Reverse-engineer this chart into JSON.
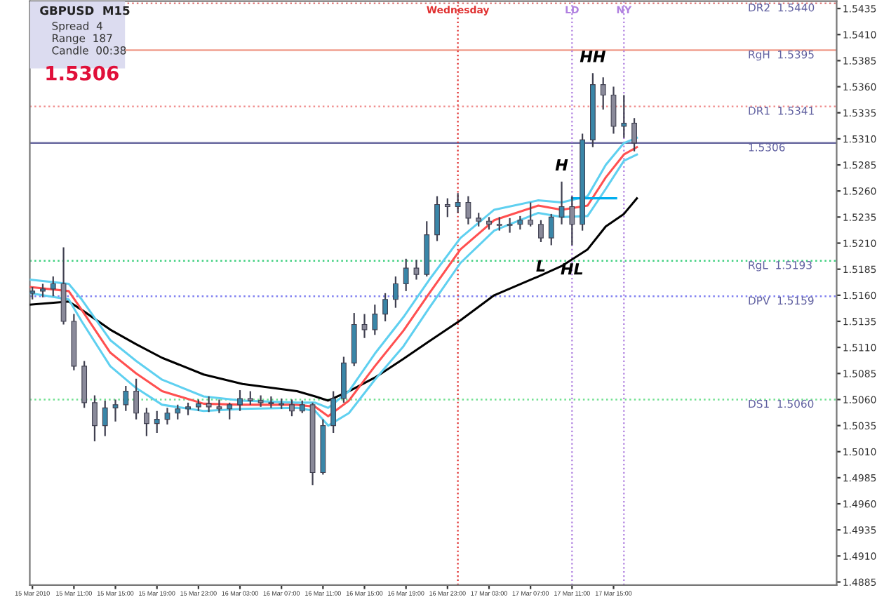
{
  "chart_data": {
    "type": "candlestick",
    "title": "GBPUSD  M15",
    "annotations": [
      "Spread  4",
      "Range  187",
      "Candle  00:38",
      "1.5306",
      {
        "text": "HH",
        "x": "2010-03-17T13:00",
        "y": 1.5373
      },
      {
        "text": "H",
        "x": "2010-03-17T10:00",
        "y": 1.5269
      },
      {
        "text": "L",
        "x": "2010-03-17T08:00",
        "y": 1.5211
      },
      {
        "text": "HL",
        "x": "2010-03-17T11:00",
        "y": 1.5208
      }
    ],
    "x": [
      "2010-03-15T07:00",
      "2010-03-15T08:00",
      "2010-03-15T09:00",
      "2010-03-15T10:00",
      "2010-03-15T11:00",
      "2010-03-15T12:00",
      "2010-03-15T13:00",
      "2010-03-15T14:00",
      "2010-03-15T15:00",
      "2010-03-15T16:00",
      "2010-03-15T17:00",
      "2010-03-15T18:00",
      "2010-03-15T19:00",
      "2010-03-15T20:00",
      "2010-03-15T21:00",
      "2010-03-15T22:00",
      "2010-03-15T23:00",
      "2010-03-16T00:00",
      "2010-03-16T01:00",
      "2010-03-16T02:00",
      "2010-03-16T03:00",
      "2010-03-16T04:00",
      "2010-03-16T05:00",
      "2010-03-16T06:00",
      "2010-03-16T07:00",
      "2010-03-16T08:00",
      "2010-03-16T09:00",
      "2010-03-16T10:00",
      "2010-03-16T11:00",
      "2010-03-16T12:00",
      "2010-03-16T13:00",
      "2010-03-16T14:00",
      "2010-03-16T15:00",
      "2010-03-16T16:00",
      "2010-03-16T17:00",
      "2010-03-16T18:00",
      "2010-03-16T19:00",
      "2010-03-16T20:00",
      "2010-03-16T21:00",
      "2010-03-16T22:00",
      "2010-03-16T23:00",
      "2010-03-17T00:00",
      "2010-03-17T01:00",
      "2010-03-17T02:00",
      "2010-03-17T03:00",
      "2010-03-17T04:00",
      "2010-03-17T05:00",
      "2010-03-17T06:00",
      "2010-03-17T07:00",
      "2010-03-17T08:00",
      "2010-03-17T09:00",
      "2010-03-17T10:00",
      "2010-03-17T11:00",
      "2010-03-17T12:00",
      "2010-03-17T13:00",
      "2010-03-17T14:00",
      "2010-03-17T15:00",
      "2010-03-17T16:00",
      "2010-03-17T17:00"
    ],
    "ohlc": [
      [
        1.5162,
        1.5168,
        1.5156,
        1.5164
      ],
      [
        1.5164,
        1.5171,
        1.5158,
        1.5166
      ],
      [
        1.5166,
        1.5178,
        1.5159,
        1.5171
      ],
      [
        1.5171,
        1.5206,
        1.5132,
        1.5135
      ],
      [
        1.5135,
        1.5142,
        1.5088,
        1.5092
      ],
      [
        1.5092,
        1.5097,
        1.5052,
        1.5057
      ],
      [
        1.5057,
        1.5064,
        1.502,
        1.5035
      ],
      [
        1.5035,
        1.5059,
        1.5025,
        1.5052
      ],
      [
        1.5052,
        1.506,
        1.5039,
        1.5055
      ],
      [
        1.5055,
        1.5073,
        1.5049,
        1.5068
      ],
      [
        1.5068,
        1.508,
        1.5041,
        1.5047
      ],
      [
        1.5047,
        1.5052,
        1.5025,
        1.5037
      ],
      [
        1.5037,
        1.5049,
        1.5028,
        1.5041
      ],
      [
        1.5041,
        1.5052,
        1.5036,
        1.5047
      ],
      [
        1.5047,
        1.5055,
        1.5041,
        1.5051
      ],
      [
        1.5051,
        1.5057,
        1.5045,
        1.5053
      ],
      [
        1.5053,
        1.506,
        1.5049,
        1.5056
      ],
      [
        1.5056,
        1.5063,
        1.5048,
        1.5053
      ],
      [
        1.5053,
        1.506,
        1.5047,
        1.5051
      ],
      [
        1.5051,
        1.5057,
        1.5041,
        1.5055
      ],
      [
        1.5055,
        1.5069,
        1.5049,
        1.5061
      ],
      [
        1.5061,
        1.5068,
        1.5055,
        1.5059
      ],
      [
        1.5059,
        1.5064,
        1.5053,
        1.5057
      ],
      [
        1.5057,
        1.5063,
        1.5052,
        1.5056
      ],
      [
        1.5056,
        1.5061,
        1.5051,
        1.5055
      ],
      [
        1.5055,
        1.506,
        1.5044,
        1.5049
      ],
      [
        1.5049,
        1.5059,
        1.5047,
        1.5055
      ],
      [
        1.5055,
        1.5057,
        1.4978,
        1.499
      ],
      [
        1.499,
        1.5041,
        1.4988,
        1.5035
      ],
      [
        1.5035,
        1.5068,
        1.5028,
        1.5061
      ],
      [
        1.5061,
        1.5101,
        1.5057,
        1.5095
      ],
      [
        1.5095,
        1.5143,
        1.5092,
        1.5132
      ],
      [
        1.5132,
        1.5142,
        1.5119,
        1.5127
      ],
      [
        1.5127,
        1.5151,
        1.5122,
        1.5142
      ],
      [
        1.5142,
        1.5162,
        1.5135,
        1.5156
      ],
      [
        1.5156,
        1.5178,
        1.5148,
        1.5171
      ],
      [
        1.5171,
        1.5195,
        1.5164,
        1.5186
      ],
      [
        1.5186,
        1.5194,
        1.5175,
        1.518
      ],
      [
        1.518,
        1.5231,
        1.5178,
        1.5218
      ],
      [
        1.5218,
        1.5255,
        1.5212,
        1.5247
      ],
      [
        1.5247,
        1.5253,
        1.5235,
        1.5245
      ],
      [
        1.5245,
        1.5258,
        1.5239,
        1.5249
      ],
      [
        1.5249,
        1.5255,
        1.5228,
        1.5234
      ],
      [
        1.5234,
        1.5239,
        1.5226,
        1.5231
      ],
      [
        1.5231,
        1.5235,
        1.5223,
        1.5228
      ],
      [
        1.5228,
        1.5235,
        1.5222,
        1.5227
      ],
      [
        1.5227,
        1.5234,
        1.522,
        1.5228
      ],
      [
        1.5228,
        1.5236,
        1.5223,
        1.5232
      ],
      [
        1.5232,
        1.5249,
        1.5226,
        1.5228
      ],
      [
        1.5228,
        1.5232,
        1.5211,
        1.5215
      ],
      [
        1.5215,
        1.5238,
        1.5208,
        1.5235
      ],
      [
        1.5235,
        1.5269,
        1.5228,
        1.5245
      ],
      [
        1.5245,
        1.5255,
        1.5208,
        1.5228
      ],
      [
        1.5228,
        1.5315,
        1.5222,
        1.5309
      ],
      [
        1.5309,
        1.5373,
        1.5302,
        1.5362
      ],
      [
        1.5362,
        1.5369,
        1.5338,
        1.5352
      ],
      [
        1.5352,
        1.536,
        1.5315,
        1.5322
      ],
      [
        1.5322,
        1.5352,
        1.5311,
        1.5325
      ],
      [
        1.5325,
        1.533,
        1.5298,
        1.5306
      ]
    ],
    "series": [
      {
        "type": "line",
        "color": "#000000",
        "x": [
          "2010-03-15T06:45",
          "2010-03-15T10:30",
          "2010-03-15T11:45",
          "2010-03-15T14:30",
          "2010-03-15T17:00",
          "2010-03-15T19:30",
          "2010-03-15T23:30",
          "2010-03-16T03:15",
          "2010-03-16T08:30",
          "2010-03-16T10:15",
          "2010-03-16T11:30",
          "2010-03-16T13:30",
          "2010-03-16T16:00",
          "2010-03-16T18:45",
          "2010-03-16T21:15",
          "2010-03-17T00:15",
          "2010-03-17T03:30",
          "2010-03-17T07:45",
          "2010-03-17T10:00",
          "2010-03-17T12:30",
          "2010-03-17T14:15",
          "2010-03-17T16:00",
          "2010-03-17T17:15"
        ],
        "values": [
          1.5151,
          1.5154,
          1.5146,
          1.5127,
          1.5113,
          1.51,
          1.5084,
          1.5075,
          1.5068,
          1.5063,
          1.5059,
          1.5068,
          1.5081,
          1.5099,
          1.5116,
          1.5136,
          1.516,
          1.5178,
          1.5188,
          1.5204,
          1.5226,
          1.5238,
          1.5253
        ]
      },
      {
        "type": "line",
        "color": "#ff5050",
        "x": [
          "2010-03-15T06:45",
          "2010-03-15T10:30",
          "2010-03-15T11:45",
          "2010-03-15T14:30",
          "2010-03-15T17:00",
          "2010-03-15T19:30",
          "2010-03-15T23:30",
          "2010-03-16T03:15",
          "2010-03-16T08:30",
          "2010-03-16T10:15",
          "2010-03-16T11:30",
          "2010-03-16T13:30",
          "2010-03-16T16:00",
          "2010-03-16T18:45",
          "2010-03-16T21:15",
          "2010-03-17T00:15",
          "2010-03-17T03:30",
          "2010-03-17T07:45",
          "2010-03-17T10:00",
          "2010-03-17T12:30",
          "2010-03-17T14:15",
          "2010-03-17T16:00",
          "2010-03-17T17:15"
        ],
        "values": [
          1.5168,
          1.5164,
          1.5146,
          1.5105,
          1.5085,
          1.5068,
          1.5056,
          1.5055,
          1.5055,
          1.5053,
          1.5044,
          1.5059,
          1.5092,
          1.5126,
          1.5162,
          1.5204,
          1.5232,
          1.5246,
          1.5242,
          1.5246,
          1.5273,
          1.5295,
          1.5302
        ]
      },
      {
        "type": "line",
        "color": "#5fd0f0",
        "x": [
          "2010-03-15T06:45",
          "2010-03-15T10:30",
          "2010-03-15T11:45",
          "2010-03-15T14:30",
          "2010-03-15T17:00",
          "2010-03-15T19:30",
          "2010-03-15T23:30",
          "2010-03-16T03:15",
          "2010-03-16T08:30",
          "2010-03-16T10:15",
          "2010-03-16T11:30",
          "2010-03-16T13:30",
          "2010-03-16T16:00",
          "2010-03-16T18:45",
          "2010-03-16T21:15",
          "2010-03-17T00:15",
          "2010-03-17T03:30",
          "2010-03-17T07:45",
          "2010-03-17T10:00",
          "2010-03-17T12:30",
          "2010-03-17T14:15",
          "2010-03-17T16:00",
          "2010-03-17T17:15"
        ],
        "values": [
          1.5175,
          1.5171,
          1.5156,
          1.5117,
          1.5097,
          1.5079,
          1.5063,
          1.5059,
          1.5057,
          1.5057,
          1.5052,
          1.5068,
          1.5104,
          1.5139,
          1.5175,
          1.5215,
          1.5242,
          1.5251,
          1.5249,
          1.5255,
          1.5285,
          1.5306,
          1.5311
        ]
      },
      {
        "type": "line",
        "color": "#5fd0f0",
        "x": [
          "2010-03-15T06:45",
          "2010-03-15T10:30",
          "2010-03-15T11:45",
          "2010-03-15T14:30",
          "2010-03-15T17:00",
          "2010-03-15T19:30",
          "2010-03-15T23:30",
          "2010-03-16T03:15",
          "2010-03-16T08:30",
          "2010-03-16T10:15",
          "2010-03-16T11:30",
          "2010-03-16T13:30",
          "2010-03-16T16:00",
          "2010-03-16T18:45",
          "2010-03-16T21:15",
          "2010-03-17T00:15",
          "2010-03-17T03:30",
          "2010-03-17T07:45",
          "2010-03-17T10:00",
          "2010-03-17T12:30",
          "2010-03-17T14:15",
          "2010-03-17T16:00",
          "2010-03-17T17:15"
        ],
        "values": [
          1.5162,
          1.5156,
          1.5135,
          1.5092,
          1.5071,
          1.5055,
          1.5049,
          1.5051,
          1.5052,
          1.5049,
          1.5035,
          1.5047,
          1.5079,
          1.5111,
          1.5148,
          1.5191,
          1.5222,
          1.5239,
          1.5235,
          1.5236,
          1.5262,
          1.5289,
          1.5295
        ]
      },
      {
        "type": "line",
        "color": "#00aeef",
        "x": [
          "2010-03-17T11:00",
          "2010-03-17T15:15"
        ],
        "values": [
          1.5253,
          1.5253
        ]
      }
    ],
    "ref_lines": [
      {
        "axis": "y",
        "value": 1.544,
        "label": "DR2  1.5440",
        "color": "#e08080",
        "line_style": "dotted"
      },
      {
        "axis": "y",
        "value": 1.5395,
        "label": "RgH  1.5395",
        "color": "#f0a090",
        "line_style": "solid"
      },
      {
        "axis": "y",
        "value": 1.5341,
        "label": "DR1  1.5341",
        "color": "#f09090",
        "line_style": "dotted"
      },
      {
        "axis": "y",
        "value": 1.5306,
        "label": "1.5306",
        "color": "#6a6aa0",
        "line_style": "solid"
      },
      {
        "axis": "y",
        "value": 1.5193,
        "label": "RgL  1.5193",
        "color": "#40d080",
        "line_style": "dotted"
      },
      {
        "axis": "y",
        "value": 1.5159,
        "label": "DPV  1.5159",
        "color": "#8080f0",
        "line_style": "dotted"
      },
      {
        "axis": "y",
        "value": 1.506,
        "label": "DS1  1.5060",
        "color": "#70e090",
        "line_style": "dotted"
      },
      {
        "axis": "x",
        "value": "2010-03-17T00:00",
        "label": "Wednesday",
        "color": "#e03030",
        "line_style": "dotted"
      },
      {
        "axis": "x",
        "value": "2010-03-17T11:00",
        "label": "LD",
        "color": "#b080e0",
        "line_style": "dotted"
      },
      {
        "axis": "x",
        "value": "2010-03-17T16:00",
        "label": "NY",
        "color": "#b080e0",
        "line_style": "dotted"
      }
    ],
    "xlim": [
      "2010-03-15T06:45",
      "2010-03-18T12:30"
    ],
    "xticks": [
      {
        "value": "2010-03-15T07:00",
        "label": "15 Mar 2010"
      },
      {
        "value": "2010-03-15T11:00",
        "label": "15 Mar 11:00"
      },
      {
        "value": "2010-03-15T15:00",
        "label": "15 Mar 15:00"
      },
      {
        "value": "2010-03-15T19:00",
        "label": "15 Mar 19:00"
      },
      {
        "value": "2010-03-15T23:00",
        "label": "15 Mar 23:00"
      },
      {
        "value": "2010-03-16T03:00",
        "label": "16 Mar 03:00"
      },
      {
        "value": "2010-03-16T07:00",
        "label": "16 Mar 07:00"
      },
      {
        "value": "2010-03-16T11:00",
        "label": "16 Mar 11:00"
      },
      {
        "value": "2010-03-16T15:00",
        "label": "16 Mar 15:00"
      },
      {
        "value": "2010-03-16T19:00",
        "label": "16 Mar 19:00"
      },
      {
        "value": "2010-03-16T23:00",
        "label": "16 Mar 23:00"
      },
      {
        "value": "2010-03-17T03:00",
        "label": "17 Mar 03:00"
      },
      {
        "value": "2010-03-17T07:00",
        "label": "17 Mar 07:00"
      },
      {
        "value": "2010-03-17T11:00",
        "label": "17 Mar 11:00"
      },
      {
        "value": "2010-03-17T15:00",
        "label": "17 Mar 15:00"
      }
    ],
    "ylim": [
      1.4882,
      1.5442
    ],
    "yticks": [
      1.4885,
      {
        "value": 1.491,
        "label": "1.4910"
      },
      1.4935,
      {
        "value": 1.496,
        "label": "1.4960"
      },
      1.4985,
      {
        "value": 1.501,
        "label": "1.5010"
      },
      1.5035,
      {
        "value": 1.506,
        "label": "1.5060"
      },
      1.5085,
      {
        "value": 1.511,
        "label": "1.5110"
      },
      1.5135,
      {
        "value": 1.516,
        "label": "1.5160"
      },
      1.5185,
      {
        "value": 1.521,
        "label": "1.5210"
      },
      1.5235,
      {
        "value": 1.526,
        "label": "1.5260"
      },
      1.5285,
      {
        "value": 1.531,
        "label": "1.5310"
      },
      1.5335,
      {
        "value": 1.536,
        "label": "1.5360"
      },
      1.5385,
      {
        "value": 1.541,
        "label": "1.5410"
      },
      1.5435
    ]
  }
}
